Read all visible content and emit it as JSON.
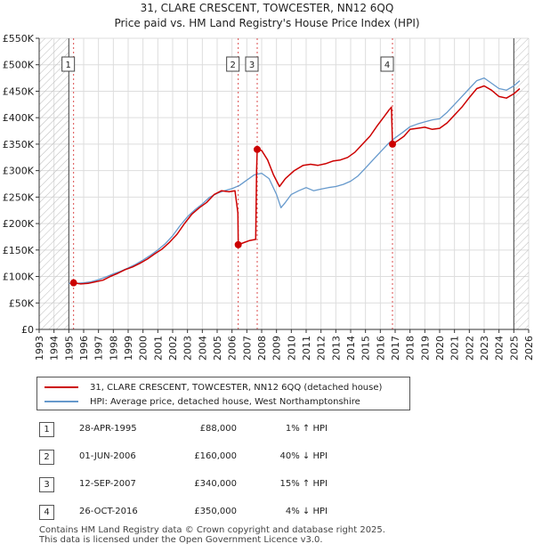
{
  "chart_data": {
    "type": "line",
    "title": "31, CLARE CRESCENT, TOWCESTER, NN12 6QQ",
    "subtitle": "Price paid vs. HM Land Registry's House Price Index (HPI)",
    "xlabel": "",
    "ylabel": "",
    "xlim": [
      1993,
      2026
    ],
    "ylim": [
      0,
      550000
    ],
    "x_ticks": [
      "1993",
      "1994",
      "1995",
      "1996",
      "1997",
      "1998",
      "1999",
      "2000",
      "2001",
      "2002",
      "2003",
      "2004",
      "2005",
      "2006",
      "2007",
      "2008",
      "2009",
      "2010",
      "2011",
      "2012",
      "2013",
      "2014",
      "2015",
      "2016",
      "2017",
      "2018",
      "2019",
      "2020",
      "2021",
      "2022",
      "2023",
      "2024",
      "2025",
      "2026"
    ],
    "y_ticks": [
      {
        "value": 0,
        "label": "£0"
      },
      {
        "value": 50000,
        "label": "£50K"
      },
      {
        "value": 100000,
        "label": "£100K"
      },
      {
        "value": 150000,
        "label": "£150K"
      },
      {
        "value": 200000,
        "label": "£200K"
      },
      {
        "value": 250000,
        "label": "£250K"
      },
      {
        "value": 300000,
        "label": "£300K"
      },
      {
        "value": 350000,
        "label": "£350K"
      },
      {
        "value": 400000,
        "label": "£400K"
      },
      {
        "value": 450000,
        "label": "£450K"
      },
      {
        "value": 500000,
        "label": "£500K"
      },
      {
        "value": 550000,
        "label": "£550K"
      }
    ],
    "hatched_ranges": [
      [
        1993,
        1995.0
      ],
      [
        2025.0,
        2026
      ]
    ],
    "colors": {
      "property": "#cc0000",
      "hpi": "#6699cc",
      "marker_line": "#cc0000"
    },
    "series": [
      {
        "name": "31, CLARE CRESCENT, TOWCESTER, NN12 6QQ (detached house)",
        "key": "property",
        "points": [
          [
            1995.32,
            88000
          ],
          [
            1995.8,
            86000
          ],
          [
            1996.3,
            87000
          ],
          [
            1996.8,
            90000
          ],
          [
            1997.3,
            93000
          ],
          [
            1997.8,
            100000
          ],
          [
            1998.3,
            106000
          ],
          [
            1998.8,
            113000
          ],
          [
            1999.3,
            118000
          ],
          [
            1999.8,
            125000
          ],
          [
            2000.3,
            133000
          ],
          [
            2000.8,
            143000
          ],
          [
            2001.3,
            152000
          ],
          [
            2001.8,
            165000
          ],
          [
            2002.3,
            180000
          ],
          [
            2002.8,
            200000
          ],
          [
            2003.3,
            218000
          ],
          [
            2003.8,
            230000
          ],
          [
            2004.3,
            240000
          ],
          [
            2004.8,
            255000
          ],
          [
            2005.3,
            262000
          ],
          [
            2005.8,
            260000
          ],
          [
            2006.2,
            262000
          ],
          [
            2006.4,
            220000
          ],
          [
            2006.42,
            160000
          ],
          [
            2006.8,
            164000
          ],
          [
            2007.2,
            168000
          ],
          [
            2007.6,
            170000
          ],
          [
            2007.66,
            300000
          ],
          [
            2007.7,
            340000
          ],
          [
            2008.0,
            338000
          ],
          [
            2008.4,
            320000
          ],
          [
            2008.8,
            292000
          ],
          [
            2009.2,
            270000
          ],
          [
            2009.6,
            285000
          ],
          [
            2010.2,
            300000
          ],
          [
            2010.8,
            310000
          ],
          [
            2011.3,
            312000
          ],
          [
            2011.8,
            310000
          ],
          [
            2012.3,
            313000
          ],
          [
            2012.8,
            318000
          ],
          [
            2013.3,
            320000
          ],
          [
            2013.8,
            325000
          ],
          [
            2014.3,
            335000
          ],
          [
            2014.8,
            350000
          ],
          [
            2015.3,
            365000
          ],
          [
            2015.8,
            385000
          ],
          [
            2016.2,
            400000
          ],
          [
            2016.6,
            415000
          ],
          [
            2016.75,
            420000
          ],
          [
            2016.82,
            350000
          ],
          [
            2017.2,
            357000
          ],
          [
            2017.6,
            365000
          ],
          [
            2018.0,
            378000
          ],
          [
            2018.5,
            380000
          ],
          [
            2019.0,
            382000
          ],
          [
            2019.5,
            378000
          ],
          [
            2020.0,
            380000
          ],
          [
            2020.5,
            390000
          ],
          [
            2021.0,
            405000
          ],
          [
            2021.5,
            420000
          ],
          [
            2022.0,
            438000
          ],
          [
            2022.5,
            455000
          ],
          [
            2023.0,
            460000
          ],
          [
            2023.5,
            452000
          ],
          [
            2024.0,
            440000
          ],
          [
            2024.5,
            437000
          ],
          [
            2025.0,
            445000
          ],
          [
            2025.4,
            455000
          ]
        ]
      },
      {
        "name": "HPI: Average price, detached house, West Northamptonshire",
        "key": "hpi",
        "points": [
          [
            1995.0,
            87000
          ],
          [
            1995.5,
            87000
          ],
          [
            1996.0,
            88000
          ],
          [
            1996.5,
            90000
          ],
          [
            1997.0,
            94000
          ],
          [
            1997.5,
            99000
          ],
          [
            1998.0,
            105000
          ],
          [
            1998.5,
            110000
          ],
          [
            1999.0,
            116000
          ],
          [
            1999.5,
            123000
          ],
          [
            2000.0,
            131000
          ],
          [
            2000.5,
            140000
          ],
          [
            2001.0,
            150000
          ],
          [
            2001.5,
            162000
          ],
          [
            2002.0,
            177000
          ],
          [
            2002.5,
            196000
          ],
          [
            2003.0,
            213000
          ],
          [
            2003.5,
            226000
          ],
          [
            2004.0,
            237000
          ],
          [
            2004.5,
            250000
          ],
          [
            2005.0,
            257000
          ],
          [
            2005.5,
            262000
          ],
          [
            2006.0,
            266000
          ],
          [
            2006.5,
            272000
          ],
          [
            2007.0,
            282000
          ],
          [
            2007.5,
            292000
          ],
          [
            2008.0,
            295000
          ],
          [
            2008.5,
            285000
          ],
          [
            2009.0,
            255000
          ],
          [
            2009.3,
            230000
          ],
          [
            2009.6,
            240000
          ],
          [
            2010.0,
            255000
          ],
          [
            2010.5,
            262000
          ],
          [
            2011.0,
            268000
          ],
          [
            2011.5,
            262000
          ],
          [
            2012.0,
            265000
          ],
          [
            2012.5,
            268000
          ],
          [
            2013.0,
            270000
          ],
          [
            2013.5,
            274000
          ],
          [
            2014.0,
            280000
          ],
          [
            2014.5,
            290000
          ],
          [
            2015.0,
            305000
          ],
          [
            2015.5,
            320000
          ],
          [
            2016.0,
            335000
          ],
          [
            2016.5,
            350000
          ],
          [
            2017.0,
            362000
          ],
          [
            2017.5,
            372000
          ],
          [
            2018.0,
            383000
          ],
          [
            2018.5,
            388000
          ],
          [
            2019.0,
            392000
          ],
          [
            2019.5,
            396000
          ],
          [
            2020.0,
            398000
          ],
          [
            2020.5,
            410000
          ],
          [
            2021.0,
            425000
          ],
          [
            2021.5,
            440000
          ],
          [
            2022.0,
            455000
          ],
          [
            2022.5,
            470000
          ],
          [
            2023.0,
            475000
          ],
          [
            2023.5,
            465000
          ],
          [
            2024.0,
            455000
          ],
          [
            2024.5,
            452000
          ],
          [
            2025.0,
            460000
          ],
          [
            2025.4,
            470000
          ]
        ]
      }
    ],
    "sales": [
      {
        "label": "1",
        "x": 1995.32,
        "value": 88000,
        "date": "28-APR-1995",
        "price": "£88,000",
        "hpi": "1% ↑ HPI"
      },
      {
        "label": "2",
        "x": 2006.42,
        "value": 160000,
        "date": "01-JUN-2006",
        "price": "£160,000",
        "hpi": "40% ↓ HPI"
      },
      {
        "label": "3",
        "x": 2007.7,
        "value": 340000,
        "date": "12-SEP-2007",
        "price": "£340,000",
        "hpi": "15% ↑ HPI"
      },
      {
        "label": "4",
        "x": 2016.82,
        "value": 350000,
        "date": "26-OCT-2016",
        "price": "£350,000",
        "hpi": "4% ↓ HPI"
      }
    ]
  },
  "legend": {
    "property": "31, CLARE CRESCENT, TOWCESTER, NN12 6QQ (detached house)",
    "hpi": "HPI: Average price, detached house, West Northamptonshire"
  },
  "footer": {
    "line1": "Contains HM Land Registry data © Crown copyright and database right 2025.",
    "line2": "This data is licensed under the Open Government Licence v3.0."
  }
}
